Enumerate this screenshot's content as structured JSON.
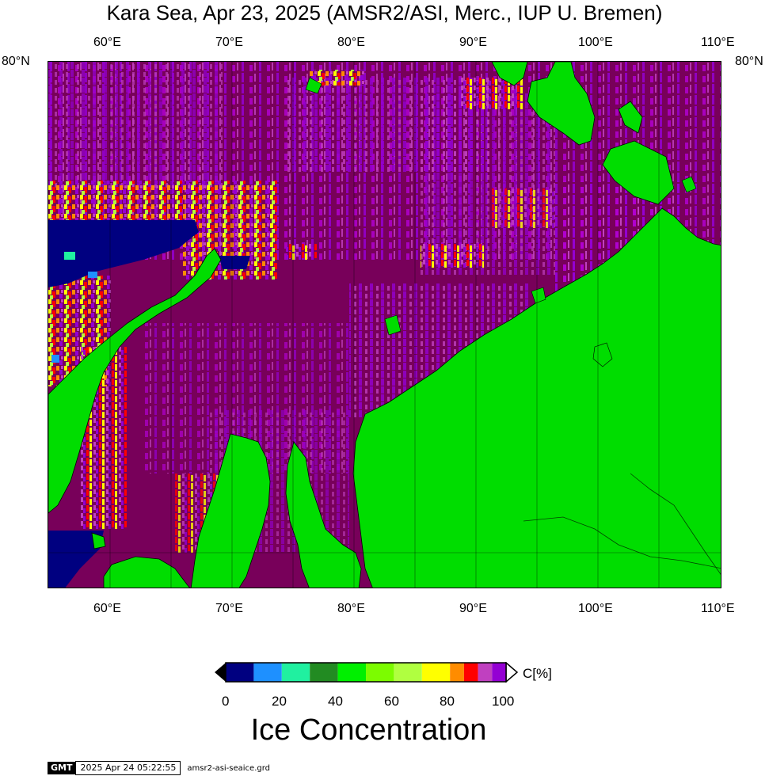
{
  "title": "Kara Sea, Apr 23, 2025 (AMSR2/ASI, Merc., IUP U. Bremen)",
  "lon_labels": [
    "60°E",
    "70°E",
    "80°E",
    "90°E",
    "100°E",
    "110°E"
  ],
  "lat_label": "80°N",
  "colorbar": {
    "unit": "C[%]",
    "tick_labels": [
      "0",
      "20",
      "40",
      "60",
      "80",
      "100"
    ],
    "colors": [
      "#000080",
      "#1e90ff",
      "#20f0a0",
      "#228b22",
      "#00f000",
      "#7cfc00",
      "#b0ff40",
      "#ffff00",
      "#ff8c00",
      "#ff0000",
      "#c040c0",
      "#9400d3"
    ],
    "title": "Ice Concentration"
  },
  "colors": {
    "ice_100": "#78005a",
    "ice_90": "#9400d3",
    "land": "#00dd00",
    "open_water": "#000080"
  },
  "footer": {
    "logo": "GMT",
    "timestamp": "2025 Apr 24 05:22:55",
    "file": "amsr2-asi-seaice.grd"
  }
}
